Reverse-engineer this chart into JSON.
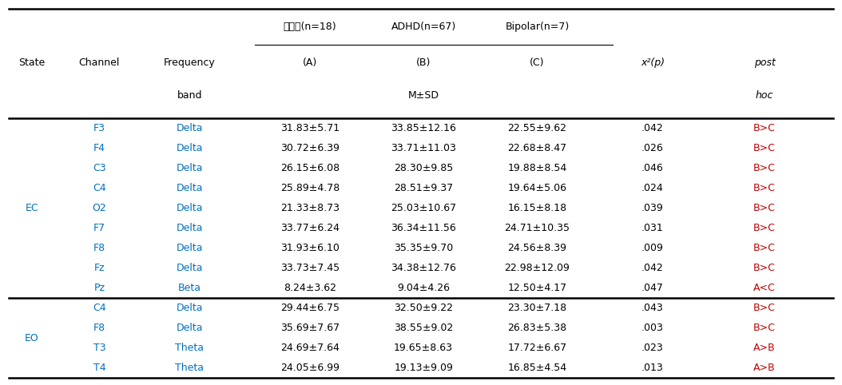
{
  "rows_ec": [
    [
      "F3",
      "Delta",
      "31.83±5.71",
      "33.85±12.16",
      "22.55±9.62",
      ".042",
      "B>C"
    ],
    [
      "F4",
      "Delta",
      "30.72±6.39",
      "33.71±11.03",
      "22.68±8.47",
      ".026",
      "B>C"
    ],
    [
      "C3",
      "Delta",
      "26.15±6.08",
      "28.30±9.85",
      "19.88±8.54",
      ".046",
      "B>C"
    ],
    [
      "C4",
      "Delta",
      "25.89±4.78",
      "28.51±9.37",
      "19.64±5.06",
      ".024",
      "B>C"
    ],
    [
      "O2",
      "Delta",
      "21.33±8.73",
      "25.03±10.67",
      "16.15±8.18",
      ".039",
      "B>C"
    ],
    [
      "F7",
      "Delta",
      "33.77±6.24",
      "36.34±11.56",
      "24.71±10.35",
      ".031",
      "B>C"
    ],
    [
      "F8",
      "Delta",
      "31.93±6.10",
      "35.35±9.70",
      "24.56±8.39",
      ".009",
      "B>C"
    ],
    [
      "Fz",
      "Delta",
      "33.73±7.45",
      "34.38±12.76",
      "22.98±12.09",
      ".042",
      "B>C"
    ],
    [
      "Pz",
      "Beta",
      "8.24±3.62",
      "9.04±4.26",
      "12.50±4.17",
      ".047",
      "A<C"
    ]
  ],
  "rows_eo": [
    [
      "C4",
      "Delta",
      "29.44±6.75",
      "32.50±9.22",
      "23.30±7.18",
      ".043",
      "B>C"
    ],
    [
      "F8",
      "Delta",
      "35.69±7.67",
      "38.55±9.02",
      "26.83±5.38",
      ".003",
      "B>C"
    ],
    [
      "T3",
      "Theta",
      "24.69±7.64",
      "19.65±8.63",
      "17.72±6.67",
      ".023",
      "A>B"
    ],
    [
      "T4",
      "Theta",
      "24.05±6.99",
      "19.13±9.09",
      "16.85±4.54",
      ".013",
      "A>B"
    ]
  ],
  "state_color": "#0070c0",
  "channel_color": "#0070c0",
  "freq_color": "#0070c0",
  "data_color": "#000000",
  "posthoc_color": "#c00000",
  "header_color": "#000000",
  "bg_color": "#ffffff",
  "line_color": "#000000",
  "font_size": 9.0
}
